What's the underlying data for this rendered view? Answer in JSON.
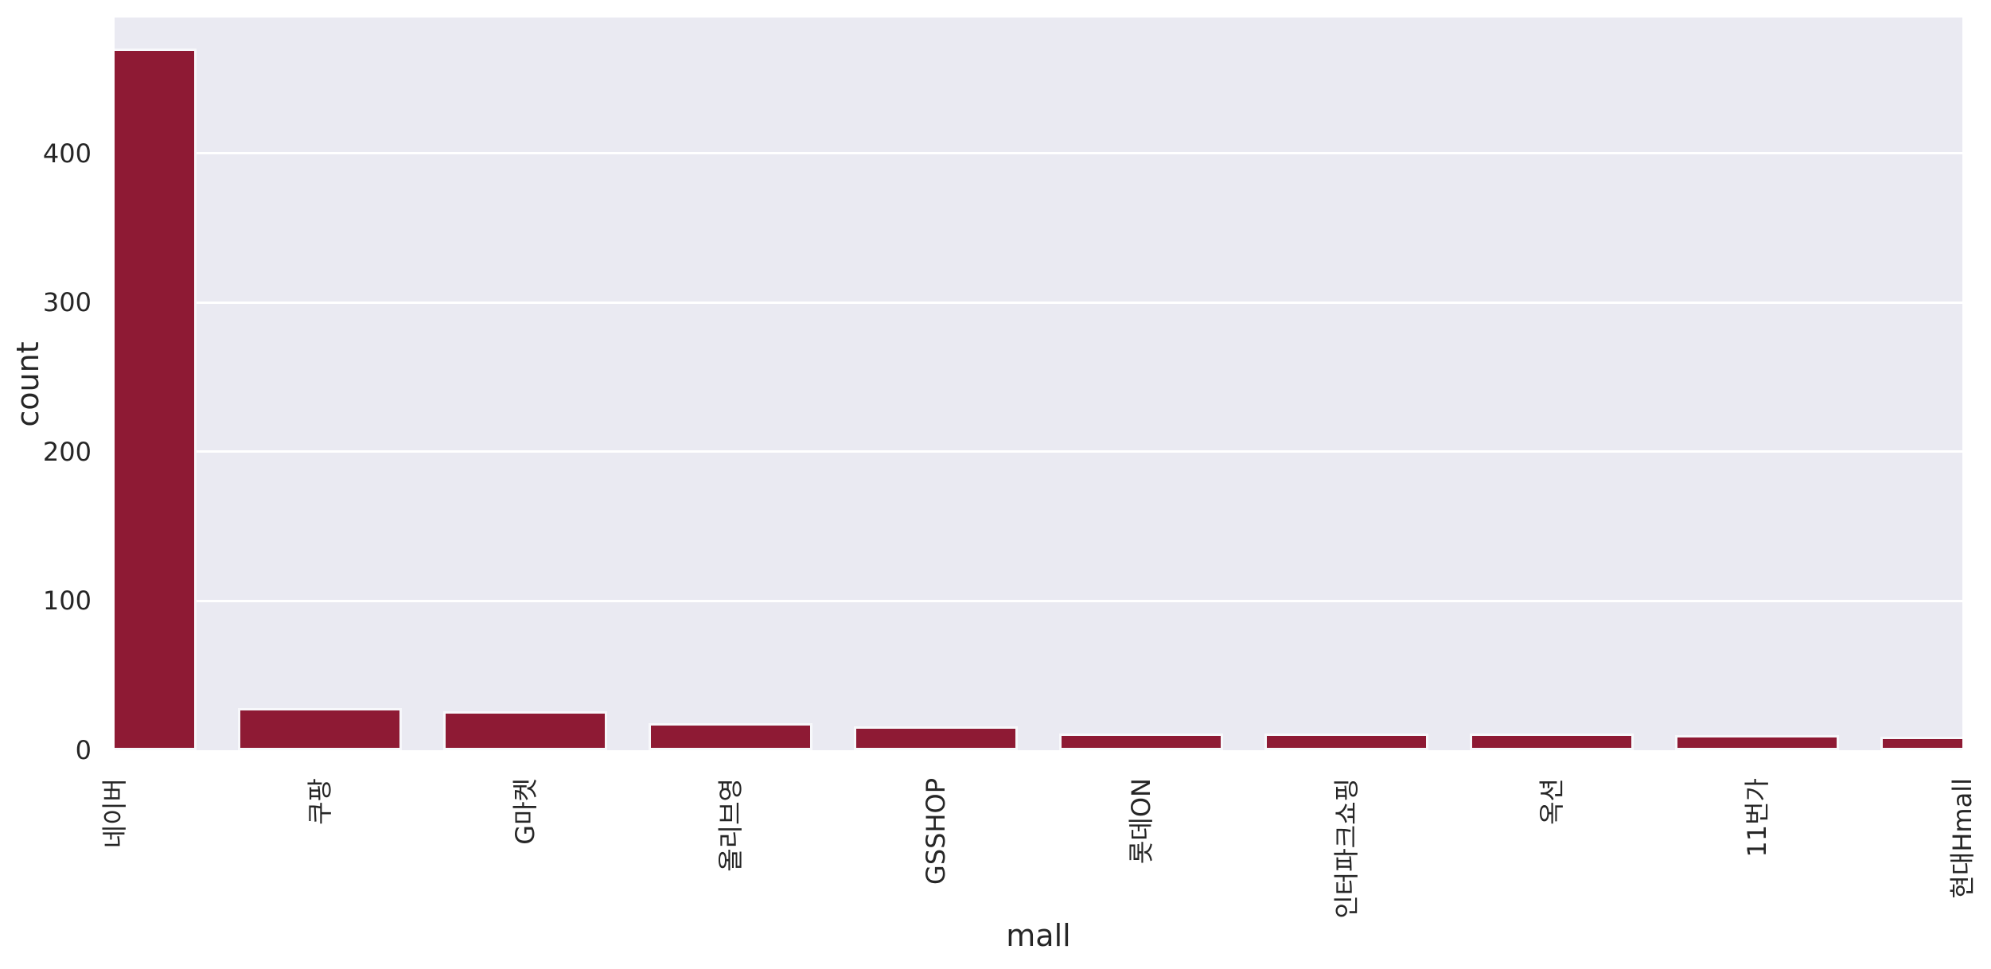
{
  "chart_data": {
    "type": "bar",
    "title": "",
    "xlabel": "mall",
    "ylabel": "count",
    "categories": [
      "네이버",
      "쿠팡",
      "G마켓",
      "올리브영",
      "GSSHOP",
      "롯데ON",
      "인터파크쇼핑",
      "옥션",
      "11번가",
      "현대Hmall"
    ],
    "values": [
      470,
      28,
      26,
      18,
      16,
      11,
      11,
      11,
      10,
      9
    ],
    "yticks": [
      0,
      100,
      200,
      300,
      400
    ],
    "ylim": [
      0,
      491
    ],
    "grid": "horizontal-white",
    "legend": "none",
    "xtick_rotation": 90,
    "colors": {
      "bar_fill": "#8e1a34",
      "bar_edge": "#f7f8fb",
      "plot_background": "#eaeaf2",
      "figure_background": "#ffffff",
      "gridline": "#ffffff",
      "text": "#262626"
    }
  }
}
